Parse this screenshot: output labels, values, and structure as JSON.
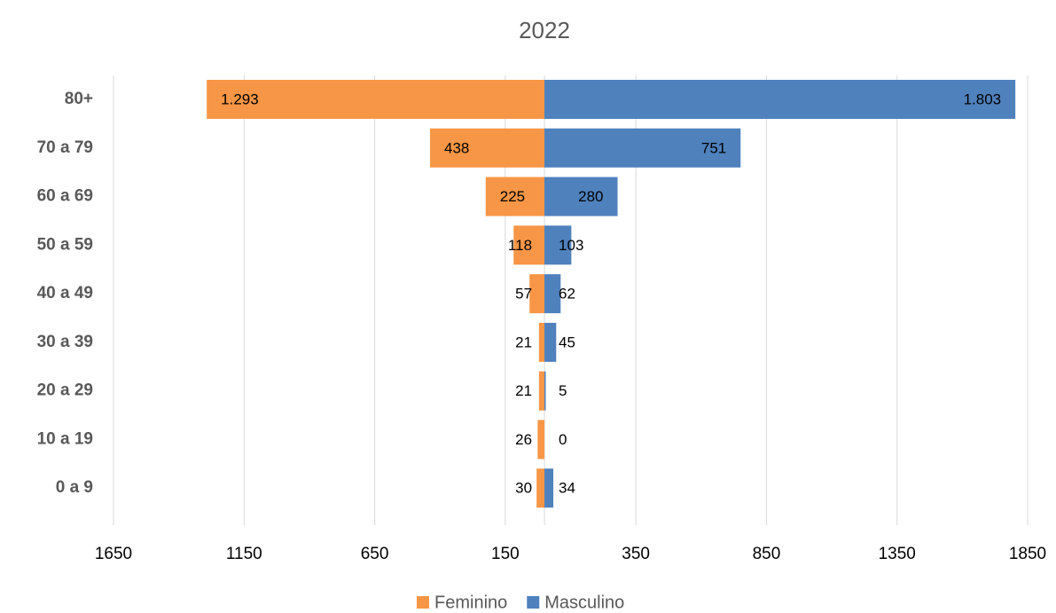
{
  "chart_data": {
    "type": "bar",
    "orientation": "horizontal",
    "title": "2022",
    "categories": [
      "80+",
      "70 a 79",
      "60 a 69",
      "50 a 59",
      "40 a 49",
      "30 a 39",
      "20 a 29",
      "10 a 19",
      "0 a 9"
    ],
    "series": [
      {
        "name": "Feminino",
        "color": "#f79646",
        "values": [
          -1293,
          -438,
          -225,
          -118,
          -57,
          -21,
          -21,
          -26,
          -30
        ],
        "value_labels": [
          "1.293",
          "438",
          "225",
          "118",
          "57",
          "21",
          "21",
          "26",
          "30"
        ]
      },
      {
        "name": "Masculino",
        "color": "#4f81bd",
        "values": [
          1803,
          751,
          280,
          103,
          62,
          45,
          5,
          0,
          34
        ],
        "value_labels": [
          "1.803",
          "751",
          "280",
          "103",
          "62",
          "45",
          "5",
          "0",
          "34"
        ]
      }
    ],
    "xlim": [
      -1650,
      1850
    ],
    "xticks": [
      {
        "value": -1650,
        "label": "1650"
      },
      {
        "value": -1150,
        "label": "1150"
      },
      {
        "value": -650,
        "label": "650"
      },
      {
        "value": -150,
        "label": "150"
      },
      350,
      850,
      1350,
      1850
    ],
    "grid": true,
    "legend": "bottom"
  }
}
